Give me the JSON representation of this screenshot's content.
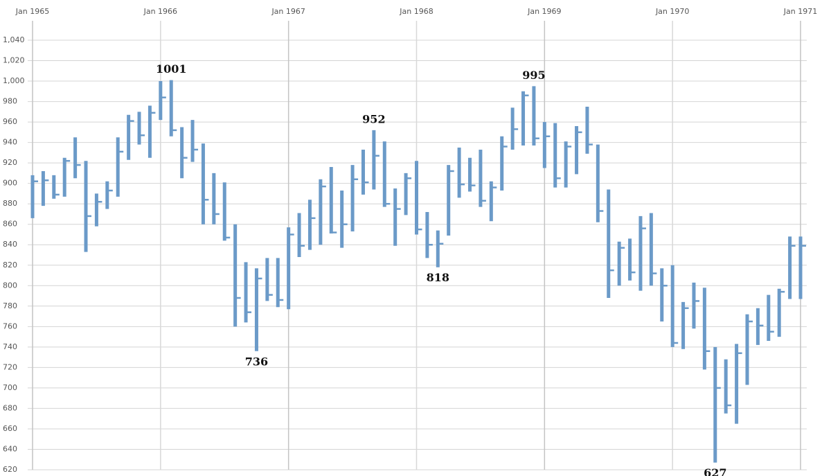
{
  "chart_data": {
    "type": "hlc",
    "color": "#6b9ac8",
    "grid": true,
    "x": [
      "1965-01",
      "1965-02",
      "1965-03",
      "1965-04",
      "1965-05",
      "1965-06",
      "1965-07",
      "1965-08",
      "1965-09",
      "1965-10",
      "1965-11",
      "1965-12",
      "1966-01",
      "1966-02",
      "1966-03",
      "1966-04",
      "1966-05",
      "1966-06",
      "1966-07",
      "1966-08",
      "1966-09",
      "1966-10",
      "1966-11",
      "1966-12",
      "1967-01",
      "1967-02",
      "1967-03",
      "1967-04",
      "1967-05",
      "1967-06",
      "1967-07",
      "1967-08",
      "1967-09",
      "1967-10",
      "1967-11",
      "1967-12",
      "1968-01",
      "1968-02",
      "1968-03",
      "1968-04",
      "1968-05",
      "1968-06",
      "1968-07",
      "1968-08",
      "1968-09",
      "1968-10",
      "1968-11",
      "1968-12",
      "1969-01",
      "1969-02",
      "1969-03",
      "1969-04",
      "1969-05",
      "1969-06",
      "1969-07",
      "1969-08",
      "1969-09",
      "1969-10",
      "1969-11",
      "1969-12",
      "1970-01",
      "1970-02",
      "1970-03",
      "1970-04",
      "1970-05",
      "1970-06",
      "1970-07",
      "1970-08",
      "1970-09",
      "1970-10",
      "1970-11",
      "1970-12",
      "1971-01"
    ],
    "high": [
      908,
      912,
      908,
      925,
      945,
      922,
      890,
      902,
      945,
      967,
      970,
      976,
      1000,
      1001,
      955,
      962,
      939,
      910,
      901,
      860,
      823,
      817,
      827,
      827,
      857,
      871,
      884,
      904,
      916,
      893,
      918,
      933,
      952,
      941,
      895,
      910,
      922,
      872,
      854,
      918,
      935,
      925,
      933,
      902,
      946,
      974,
      990,
      995,
      960,
      959,
      941,
      956,
      975,
      938,
      894,
      843,
      846,
      868,
      871,
      817,
      820,
      784,
      803,
      798,
      740,
      728,
      743,
      772,
      778,
      791,
      797,
      848,
      848
    ],
    "low": [
      866,
      878,
      885,
      887,
      905,
      833,
      858,
      875,
      887,
      923,
      938,
      925,
      962,
      946,
      905,
      921,
      860,
      860,
      844,
      760,
      764,
      736,
      785,
      779,
      777,
      828,
      835,
      840,
      851,
      837,
      853,
      889,
      894,
      877,
      839,
      869,
      850,
      827,
      818,
      849,
      886,
      892,
      877,
      863,
      893,
      933,
      937,
      937,
      915,
      896,
      896,
      909,
      929,
      862,
      788,
      800,
      805,
      795,
      800,
      765,
      740,
      738,
      758,
      718,
      627,
      675,
      665,
      703,
      742,
      746,
      750,
      787,
      787
    ],
    "close": [
      902,
      903,
      889,
      922,
      918,
      868,
      882,
      893,
      931,
      961,
      947,
      969,
      984,
      952,
      925,
      933,
      884,
      870,
      847,
      788,
      774,
      807,
      791,
      786,
      850,
      839,
      866,
      897,
      852,
      860,
      904,
      901,
      927,
      880,
      875,
      905,
      855,
      840,
      841,
      912,
      899,
      898,
      883,
      896,
      936,
      953,
      986,
      944,
      946,
      905,
      936,
      950,
      938,
      873,
      815,
      837,
      813,
      856,
      812,
      800,
      744,
      778,
      785,
      736,
      700,
      683,
      734,
      765,
      761,
      755,
      794,
      839,
      839
    ],
    "xlim": [
      "1965-01",
      "1971-01"
    ],
    "xticks": [
      {
        "value": "1965-01",
        "label": "Jan 1965"
      },
      {
        "value": "1966-01",
        "label": "Jan 1966"
      },
      {
        "value": "1967-01",
        "label": "Jan 1967"
      },
      {
        "value": "1968-01",
        "label": "Jan 1968"
      },
      {
        "value": "1969-01",
        "label": "Jan 1969"
      },
      {
        "value": "1970-01",
        "label": "Jan 1970"
      },
      {
        "value": "1971-01",
        "label": "Jan 1971"
      }
    ],
    "ylim": [
      620,
      1040
    ],
    "yticks": [
      620,
      640,
      660,
      680,
      700,
      720,
      740,
      760,
      780,
      800,
      820,
      840,
      860,
      880,
      900,
      920,
      940,
      960,
      980,
      {
        "value": 1000,
        "label": "1,000"
      },
      {
        "value": 1020,
        "label": "1,020"
      },
      {
        "value": 1040,
        "label": "1,040"
      }
    ],
    "annotations": [
      {
        "x": "1966-02",
        "value": 1001,
        "position": "above"
      },
      {
        "x": "1966-10",
        "value": 736,
        "position": "below"
      },
      {
        "x": "1967-09",
        "value": 952,
        "position": "above"
      },
      {
        "x": "1968-03",
        "value": 818,
        "position": "below"
      },
      {
        "x": "1968-12",
        "value": 995,
        "position": "above"
      },
      {
        "x": "1970-05",
        "value": 627,
        "position": "below"
      }
    ]
  }
}
